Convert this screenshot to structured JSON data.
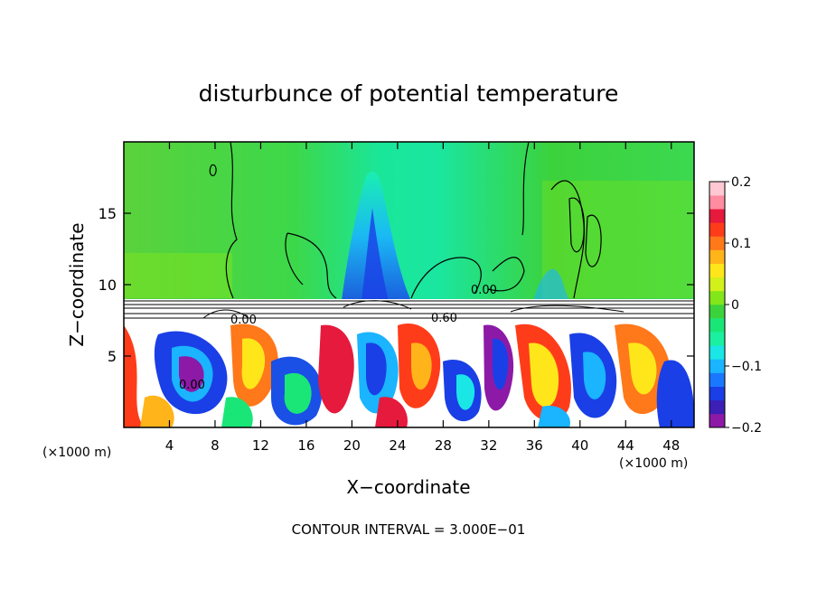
{
  "chart_data": {
    "type": "heatmap",
    "title": "disturbunce of potential temperature",
    "xlabel": "X−coordinate",
    "ylabel": "Z−coordinate",
    "x_unit": "(×1000 m)",
    "z_unit": "(×1000 m)",
    "xlim": [
      0,
      50
    ],
    "ylim": [
      0,
      20
    ],
    "x_ticks": [
      4,
      8,
      12,
      16,
      20,
      24,
      28,
      32,
      36,
      40,
      44,
      48
    ],
    "y_ticks": [
      5,
      10,
      15
    ],
    "colorbar": {
      "range": [
        -0.2,
        0.2
      ],
      "tick_values": [
        -0.2,
        -0.1,
        0,
        0.1,
        0.2
      ],
      "tick_labels": [
        "−0.2",
        "−0.1",
        "0",
        "0.1",
        "0.2"
      ],
      "colors": [
        "#8c1aa6",
        "#3c1fb4",
        "#1a3fe6",
        "#1a78ff",
        "#1ab4ff",
        "#1ae6e6",
        "#1af0a0",
        "#1ae678",
        "#3cd23c",
        "#82e61a",
        "#d2f01a",
        "#ffe61a",
        "#ffb41a",
        "#ff781a",
        "#ff3c1a",
        "#e61a3c",
        "#ff8ca0",
        "#ffc8d2"
      ]
    },
    "contour_labels": [
      "0.00",
      "0.00",
      "0.00",
      "0.60"
    ],
    "footer": "CONTOUR INTERVAL = 3.000E−01"
  }
}
